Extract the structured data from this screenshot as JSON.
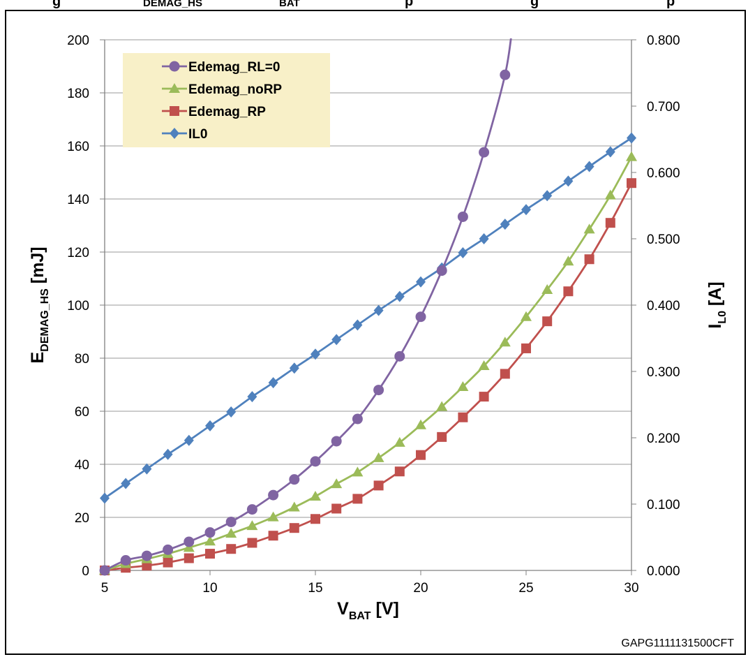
{
  "figure": {
    "header_fragment": "g",
    "header_fragment_2": "DEMAG_HS",
    "header_fragment_3": "BAT",
    "header_fragment_4": "p",
    "header_fragment_5": "g",
    "header_fragment_6": "p",
    "footer_code": "GAPG1111131500CFT"
  },
  "colors": {
    "Edemag_RL=0": "#8064a2",
    "Edemag_noRP": "#9bbb59",
    "Edemag_RP": "#c0504d",
    "IL0": "#4f81bd",
    "legend_bg": "#f8f0c8",
    "grid": "#9a9a9a"
  },
  "chart_data": {
    "type": "line",
    "x": [
      5,
      6,
      7,
      8,
      9,
      10,
      11,
      12,
      13,
      14,
      15,
      16,
      17,
      18,
      19,
      20,
      21,
      22,
      23,
      24,
      25,
      26,
      27,
      28,
      29,
      30
    ],
    "xlabel_main": "V",
    "xlabel_sub": "BAT",
    "xlabel_unit": " [V]",
    "ylabel_main": "E",
    "ylabel_sub": "DEMAG_HS",
    "ylabel_unit": " [mJ]",
    "y2label_main": "I",
    "y2label_sub": "L0",
    "y2label_unit": " [A]",
    "xlim": [
      5,
      30
    ],
    "ylim": [
      0,
      200
    ],
    "y2lim": [
      0,
      0.8
    ],
    "xticks": [
      "5",
      "10",
      "15",
      "20",
      "25",
      "30"
    ],
    "yticks": [
      "0",
      "20",
      "40",
      "60",
      "80",
      "100",
      "120",
      "140",
      "160",
      "180",
      "200"
    ],
    "y2ticks": [
      "0.000",
      "0.100",
      "0.200",
      "0.300",
      "0.400",
      "0.500",
      "0.600",
      "0.700",
      "0.800"
    ],
    "grid": "horizontal",
    "legend_position": "top-left",
    "series": [
      {
        "name": "Edemag_RL=0",
        "axis": "left",
        "marker": "circle",
        "values": [
          0,
          3.8,
          5.5,
          7.8,
          10.8,
          14.3,
          18.3,
          23,
          28.4,
          34.3,
          41.1,
          48.7,
          57.1,
          68,
          80.7,
          95.6,
          113,
          133.3,
          157.6,
          186.8,
          null,
          null,
          null,
          null,
          null,
          null
        ]
      },
      {
        "name": "Edemag_noRP",
        "axis": "left",
        "marker": "triangle",
        "values": [
          0,
          2.5,
          4.3,
          6.3,
          8.6,
          11,
          13.9,
          16.8,
          20.1,
          23.8,
          27.9,
          32.6,
          37,
          42.4,
          48.2,
          54.8,
          61.7,
          69.2,
          77.1,
          86,
          95.6,
          105.8,
          116.5,
          128.6,
          141.4,
          155.9
        ]
      },
      {
        "name": "Edemag_RP",
        "axis": "left",
        "marker": "square",
        "values": [
          0,
          1,
          1.8,
          3,
          4.6,
          6.3,
          8.1,
          10.4,
          13.1,
          16,
          19.4,
          23.3,
          27,
          32,
          37.3,
          43.5,
          50.3,
          57.7,
          65.5,
          74.1,
          83.7,
          93.9,
          105.2,
          117.3,
          131,
          146
        ]
      },
      {
        "name": "IL0",
        "axis": "right",
        "marker": "diamond",
        "values": [
          0.109,
          0.131,
          0.153,
          0.175,
          0.196,
          0.218,
          0.239,
          0.262,
          0.283,
          0.305,
          0.326,
          0.348,
          0.37,
          0.392,
          0.413,
          0.435,
          0.456,
          0.479,
          0.5,
          0.522,
          0.544,
          0.565,
          0.587,
          0.609,
          0.631,
          0.652
        ]
      }
    ]
  }
}
